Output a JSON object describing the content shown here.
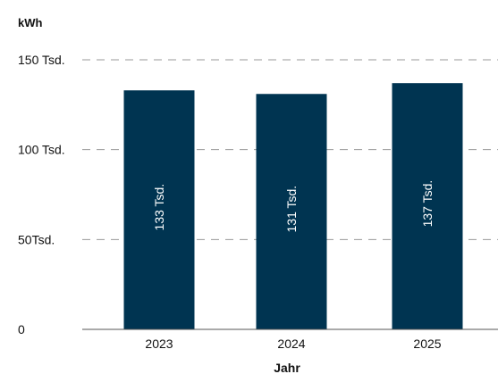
{
  "chart_data": {
    "type": "bar",
    "ylabel": "kWh",
    "xlabel": "Jahr",
    "categories": [
      "2023",
      "2024",
      "2025"
    ],
    "values": [
      133000,
      131000,
      137000
    ],
    "data_labels": [
      "133 Tsd.",
      "131 Tsd.",
      "137 Tsd."
    ],
    "ylim": [
      0,
      150000
    ],
    "y_ticks": [
      {
        "value": 0,
        "label": "0"
      },
      {
        "value": 50000,
        "label": "50Tsd."
      },
      {
        "value": 100000,
        "label": "100 Tsd."
      },
      {
        "value": 150000,
        "label": "150 Tsd."
      }
    ],
    "grid": true,
    "bar_color": "#003451",
    "grid_color": "#9a9a9a",
    "axis_color": "#555555",
    "data_label_color": "#ffffff"
  }
}
